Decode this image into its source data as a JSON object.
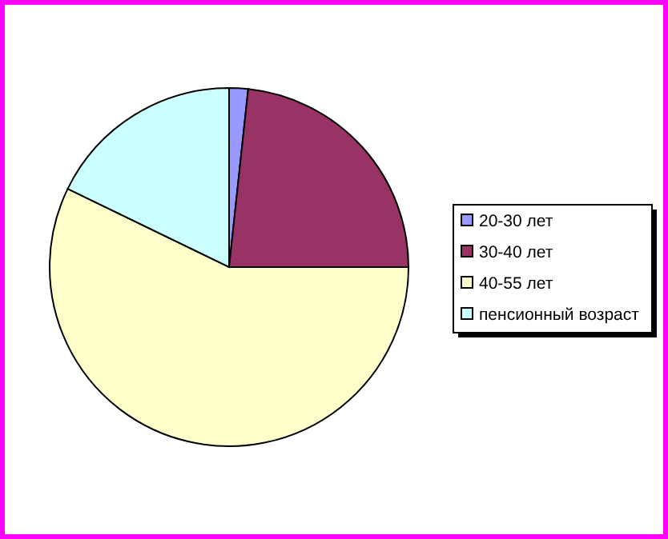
{
  "chart_data": {
    "type": "pie",
    "categories": [
      "20-30 лет",
      "30-40 лет",
      "40-55 лет",
      "пенсионный возраст"
    ],
    "values": [
      1.7,
      23.3,
      57.2,
      17.8
    ],
    "colors": [
      "#9999ff",
      "#993366",
      "#ffffcc",
      "#ccffff"
    ],
    "legend": "right"
  }
}
